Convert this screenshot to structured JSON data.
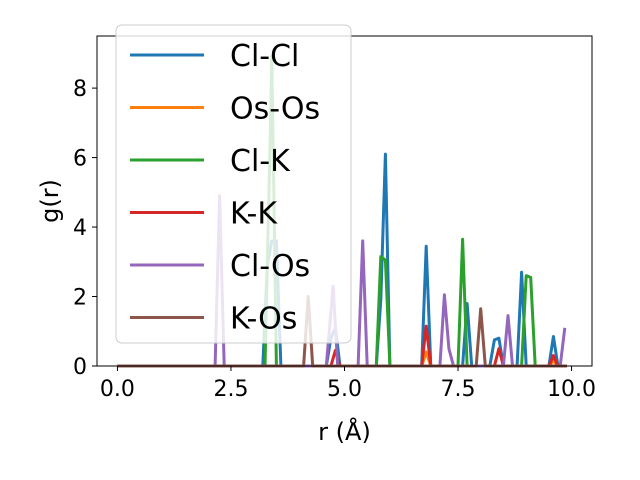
{
  "chart_data": {
    "type": "line",
    "xlabel": "r (Å)",
    "ylabel": "g(r)",
    "xlim": [
      -0.45,
      10.45
    ],
    "ylim": [
      0,
      9.5
    ],
    "xticks": [
      0.0,
      2.5,
      5.0,
      7.5,
      10.0
    ],
    "xtick_labels": [
      "0.0",
      "2.5",
      "5.0",
      "7.5",
      "10.0"
    ],
    "yticks": [
      0,
      2,
      4,
      6,
      8
    ],
    "ytick_labels": [
      "0",
      "2",
      "4",
      "6",
      "8"
    ],
    "grid": false,
    "legend_position": "top-left",
    "series": [
      {
        "name": "Cl-Cl",
        "color": "#1f77b4",
        "points": [
          [
            0,
            0
          ],
          [
            3.2,
            0
          ],
          [
            3.3,
            2.9
          ],
          [
            3.4,
            3.6
          ],
          [
            3.5,
            3.6
          ],
          [
            3.6,
            0
          ],
          [
            4.6,
            0
          ],
          [
            4.7,
            0.8
          ],
          [
            4.8,
            1.1
          ],
          [
            4.9,
            0
          ],
          [
            5.7,
            0
          ],
          [
            5.8,
            1.9
          ],
          [
            5.9,
            6.1
          ],
          [
            6.0,
            0
          ],
          [
            6.7,
            0
          ],
          [
            6.8,
            3.45
          ],
          [
            6.9,
            0
          ],
          [
            7.6,
            0
          ],
          [
            7.7,
            1.8
          ],
          [
            7.8,
            0
          ],
          [
            8.2,
            0
          ],
          [
            8.3,
            0.75
          ],
          [
            8.4,
            0.8
          ],
          [
            8.5,
            0
          ],
          [
            8.8,
            0
          ],
          [
            8.9,
            2.7
          ],
          [
            9.0,
            0
          ],
          [
            9.5,
            0
          ],
          [
            9.6,
            0.85
          ],
          [
            9.7,
            0
          ],
          [
            9.9,
            0
          ]
        ]
      },
      {
        "name": "Os-Os",
        "color": "#ff7f0e",
        "points": [
          [
            0,
            0
          ],
          [
            6.7,
            0
          ],
          [
            6.8,
            0.4
          ],
          [
            6.9,
            0
          ],
          [
            9.5,
            0
          ],
          [
            9.6,
            0.15
          ],
          [
            9.7,
            0
          ],
          [
            9.9,
            0
          ]
        ]
      },
      {
        "name": "Cl-K",
        "color": "#2ca02c",
        "points": [
          [
            0,
            0
          ],
          [
            3.25,
            0
          ],
          [
            3.35,
            5.8
          ],
          [
            3.4,
            8.9
          ],
          [
            3.5,
            0
          ],
          [
            5.7,
            0
          ],
          [
            5.8,
            3.15
          ],
          [
            5.9,
            3.05
          ],
          [
            6.0,
            0
          ],
          [
            7.5,
            0
          ],
          [
            7.6,
            3.65
          ],
          [
            7.7,
            0
          ],
          [
            8.9,
            0
          ],
          [
            9.0,
            2.6
          ],
          [
            9.1,
            2.55
          ],
          [
            9.2,
            0
          ],
          [
            9.9,
            0
          ]
        ]
      },
      {
        "name": "K-K",
        "color": "#d62728",
        "points": [
          [
            0,
            0
          ],
          [
            4.7,
            0
          ],
          [
            4.8,
            0.45
          ],
          [
            4.9,
            0
          ],
          [
            6.7,
            0
          ],
          [
            6.8,
            1.15
          ],
          [
            6.9,
            0
          ],
          [
            8.3,
            0
          ],
          [
            8.4,
            0.5
          ],
          [
            8.5,
            0
          ],
          [
            9.5,
            0
          ],
          [
            9.6,
            0.3
          ],
          [
            9.7,
            0
          ],
          [
            9.9,
            0
          ]
        ]
      },
      {
        "name": "Cl-Os",
        "color": "#9467bd",
        "points": [
          [
            0,
            0
          ],
          [
            2.15,
            0
          ],
          [
            2.25,
            4.9
          ],
          [
            2.35,
            0
          ],
          [
            4.6,
            0
          ],
          [
            4.75,
            2.3
          ],
          [
            4.85,
            0
          ],
          [
            5.3,
            0
          ],
          [
            5.4,
            3.6
          ],
          [
            5.5,
            0
          ],
          [
            7.1,
            0
          ],
          [
            7.2,
            2.05
          ],
          [
            7.3,
            0.5
          ],
          [
            7.4,
            0
          ],
          [
            8.5,
            0
          ],
          [
            8.6,
            1.45
          ],
          [
            8.7,
            0
          ],
          [
            9.75,
            0
          ],
          [
            9.85,
            1.1
          ]
        ]
      },
      {
        "name": "K-Os",
        "color": "#8c564b",
        "points": [
          [
            0,
            0
          ],
          [
            4.1,
            0
          ],
          [
            4.2,
            2.0
          ],
          [
            4.3,
            0
          ],
          [
            7.9,
            0
          ],
          [
            8.0,
            1.65
          ],
          [
            8.1,
            0
          ],
          [
            9.9,
            0
          ]
        ]
      }
    ]
  }
}
